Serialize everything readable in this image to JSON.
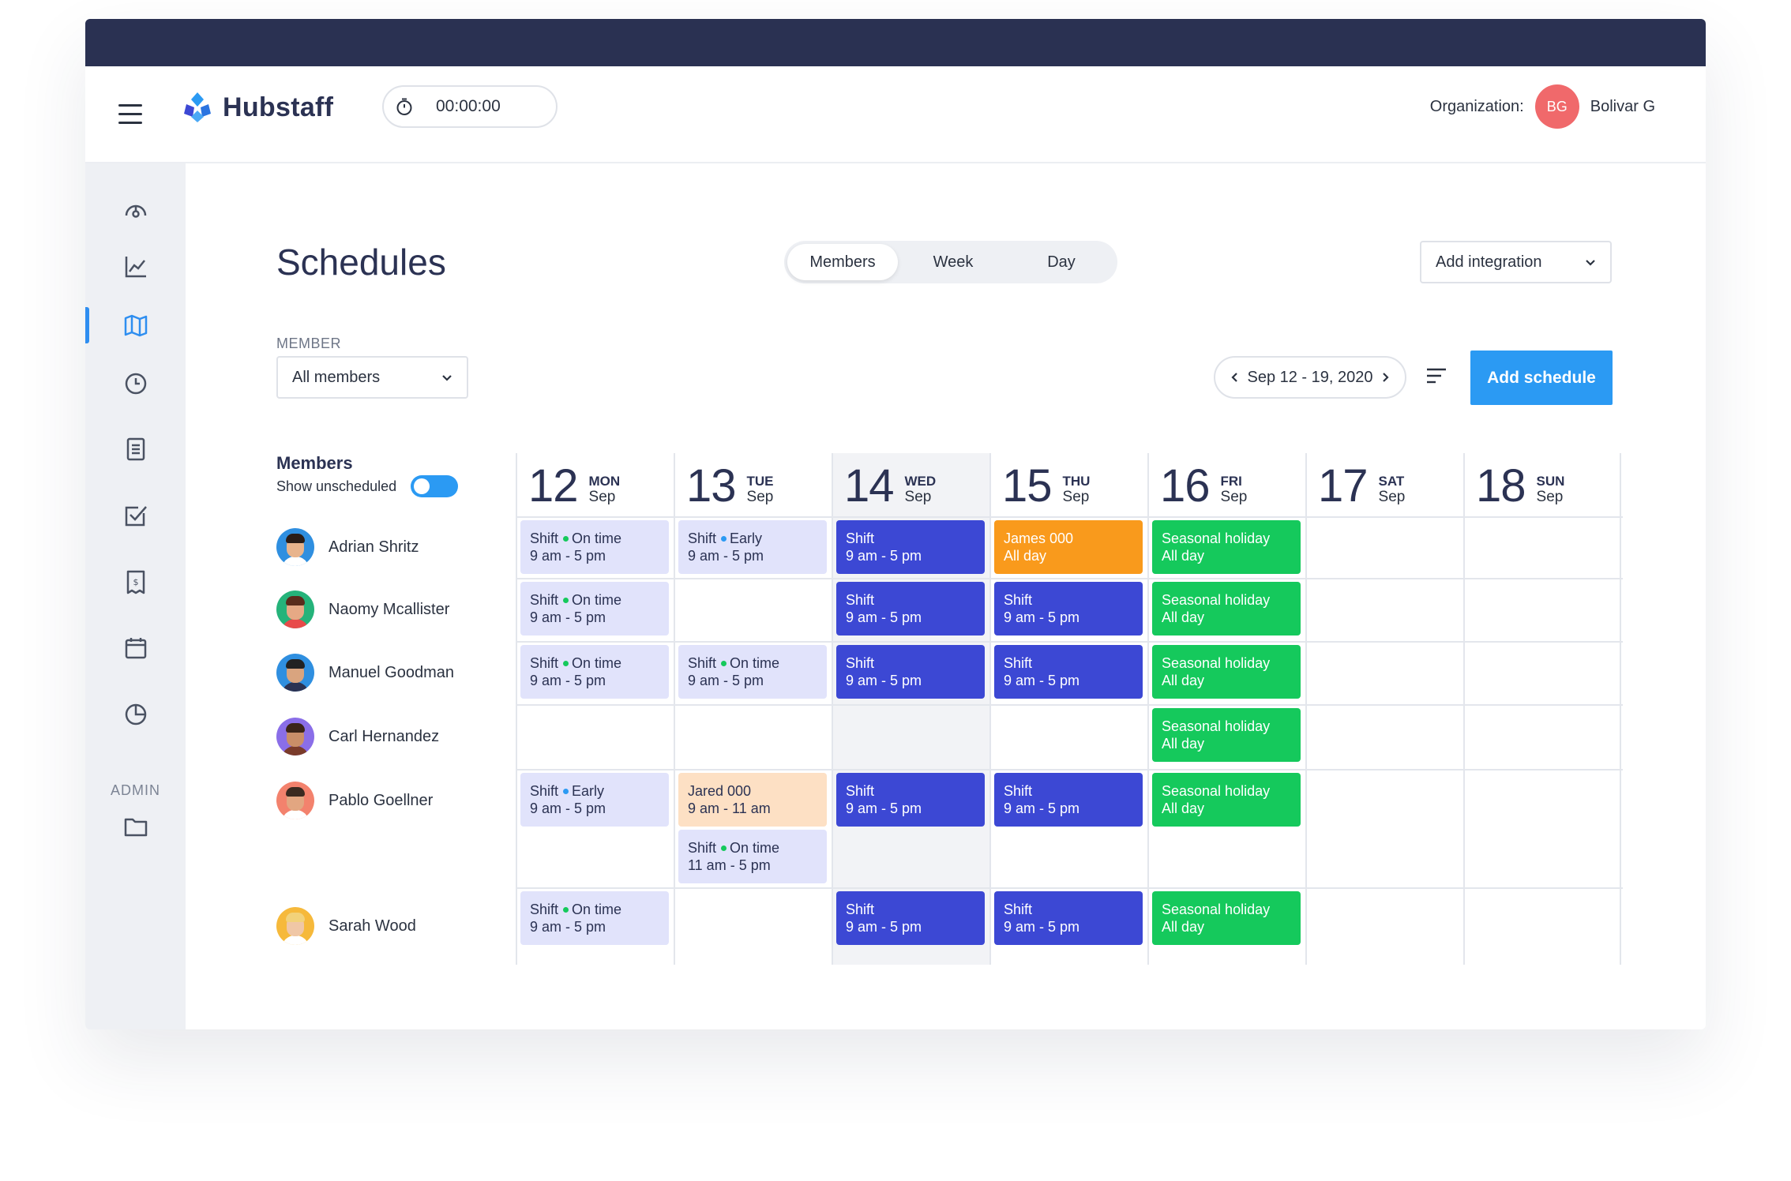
{
  "app": {
    "logo_text": "Hubstaff",
    "timer": "00:00:00"
  },
  "organization": {
    "label": "Organization:",
    "initials": "BG",
    "name": "Bolivar G",
    "avatar_color": "#f0696b"
  },
  "sidebar": {
    "admin_label": "ADMIN",
    "icons": [
      "dashboard-icon",
      "activity-chart-icon",
      "map-icon",
      "clock-icon",
      "timesheet-icon",
      "todo-check-icon",
      "invoice-icon",
      "calendar-icon",
      "reports-pie-icon"
    ],
    "admin_icon": "folder-icon"
  },
  "page": {
    "title": "Schedules"
  },
  "tabs": [
    {
      "label": "Members",
      "active": true
    },
    {
      "label": "Week",
      "active": false
    },
    {
      "label": "Day",
      "active": false
    }
  ],
  "integration": {
    "label": "Add integration"
  },
  "member_filter": {
    "label": "MEMBER",
    "value": "All members"
  },
  "date_range": {
    "label": "Sep 12 - 19, 2020"
  },
  "add_schedule": {
    "label": "Add schedule"
  },
  "grid": {
    "members_title": "Members",
    "show_unscheduled": "Show unscheduled",
    "show_unscheduled_on": true,
    "days": [
      {
        "num": "12",
        "name": "MON",
        "month": "Sep"
      },
      {
        "num": "13",
        "name": "TUE",
        "month": "Sep"
      },
      {
        "num": "14",
        "name": "WED",
        "month": "Sep"
      },
      {
        "num": "15",
        "name": "THU",
        "month": "Sep"
      },
      {
        "num": "16",
        "name": "FRI",
        "month": "Sep"
      },
      {
        "num": "17",
        "name": "SAT",
        "month": "Sep"
      },
      {
        "num": "18",
        "name": "SUN",
        "month": "Sep"
      }
    ],
    "rows": [
      {
        "name": "Adrian Shritz",
        "avatar_bg": "#2f8fe0",
        "hair": "#2a1d18",
        "skin": "#e8b48d",
        "shirt": "#ffffff"
      },
      {
        "name": "Naomy Mcallister",
        "avatar_bg": "#25b37a",
        "hair": "#5a2c1c",
        "skin": "#e6a985",
        "shirt": "#e84a4a"
      },
      {
        "name": "Manuel Goodman",
        "avatar_bg": "#2f8fe0",
        "hair": "#222222",
        "skin": "#d9a47f",
        "shirt": "#2b3253"
      },
      {
        "name": "Carl Hernandez",
        "avatar_bg": "#8a6ee8",
        "hair": "#3b2418",
        "skin": "#c98e68",
        "shirt": "#7a3b2a"
      },
      {
        "name": "Pablo Goellner",
        "avatar_bg": "#f3826d",
        "hair": "#3b2a20",
        "skin": "#e2a681",
        "shirt": "#ffffff"
      },
      {
        "name": "Sarah Wood",
        "avatar_bg": "#f6b93b",
        "hair": "#f2d27a",
        "skin": "#f0c7a6",
        "shirt": "#ffffff"
      }
    ],
    "status_colors": {
      "On time": "#15c95c",
      "Early": "#2b9af3"
    },
    "blocks": [
      {
        "row": 0,
        "day": 0,
        "slot": 0,
        "style": "light",
        "title": "Shift",
        "status": "On time",
        "time": "9 am - 5 pm"
      },
      {
        "row": 0,
        "day": 1,
        "slot": 0,
        "style": "light",
        "title": "Shift",
        "status": "Early",
        "time": "9 am - 5 pm"
      },
      {
        "row": 0,
        "day": 2,
        "slot": 0,
        "style": "blue",
        "title": "Shift",
        "status": "",
        "time": "9 am - 5 pm"
      },
      {
        "row": 0,
        "day": 3,
        "slot": 0,
        "style": "orange",
        "title": "James 000",
        "status": "",
        "time": "All day"
      },
      {
        "row": 0,
        "day": 4,
        "slot": 0,
        "style": "green",
        "title": "Seasonal holiday",
        "status": "",
        "time": "All day"
      },
      {
        "row": 1,
        "day": 0,
        "slot": 0,
        "style": "light",
        "title": "Shift",
        "status": "On time",
        "time": "9 am - 5 pm"
      },
      {
        "row": 1,
        "day": 2,
        "slot": 0,
        "style": "blue",
        "title": "Shift",
        "status": "",
        "time": "9 am - 5 pm"
      },
      {
        "row": 1,
        "day": 3,
        "slot": 0,
        "style": "blue",
        "title": "Shift",
        "status": "",
        "time": "9 am - 5 pm"
      },
      {
        "row": 1,
        "day": 4,
        "slot": 0,
        "style": "green",
        "title": "Seasonal holiday",
        "status": "",
        "time": "All day"
      },
      {
        "row": 2,
        "day": 0,
        "slot": 0,
        "style": "light",
        "title": "Shift",
        "status": "On time",
        "time": "9 am - 5 pm"
      },
      {
        "row": 2,
        "day": 1,
        "slot": 0,
        "style": "light",
        "title": "Shift",
        "status": "On time",
        "time": "9 am - 5 pm"
      },
      {
        "row": 2,
        "day": 2,
        "slot": 0,
        "style": "blue",
        "title": "Shift",
        "status": "",
        "time": "9 am - 5 pm"
      },
      {
        "row": 2,
        "day": 3,
        "slot": 0,
        "style": "blue",
        "title": "Shift",
        "status": "",
        "time": "9 am - 5 pm"
      },
      {
        "row": 2,
        "day": 4,
        "slot": 0,
        "style": "green",
        "title": "Seasonal holiday",
        "status": "",
        "time": "All day"
      },
      {
        "row": 3,
        "day": 4,
        "slot": 0,
        "style": "green",
        "title": "Seasonal holiday",
        "status": "",
        "time": "All day"
      },
      {
        "row": 4,
        "day": 0,
        "slot": 0,
        "style": "light",
        "title": "Shift",
        "status": "Early",
        "time": "9 am - 5 pm"
      },
      {
        "row": 4,
        "day": 1,
        "slot": 0,
        "style": "peach",
        "title": "Jared 000",
        "status": "",
        "time": "9 am - 11 am"
      },
      {
        "row": 4,
        "day": 1,
        "slot": 1,
        "style": "light",
        "title": "Shift",
        "status": "On time",
        "time": "11 am - 5 pm"
      },
      {
        "row": 4,
        "day": 2,
        "slot": 0,
        "style": "blue",
        "title": "Shift",
        "status": "",
        "time": "9 am - 5 pm"
      },
      {
        "row": 4,
        "day": 3,
        "slot": 0,
        "style": "blue",
        "title": "Shift",
        "status": "",
        "time": "9 am - 5 pm"
      },
      {
        "row": 4,
        "day": 4,
        "slot": 0,
        "style": "green",
        "title": "Seasonal holiday",
        "status": "",
        "time": "All day"
      },
      {
        "row": 5,
        "day": 0,
        "slot": 0,
        "style": "light",
        "title": "Shift",
        "status": "On time",
        "time": "9 am - 5 pm"
      },
      {
        "row": 5,
        "day": 2,
        "slot": 0,
        "style": "blue",
        "title": "Shift",
        "status": "",
        "time": "9 am - 5 pm"
      },
      {
        "row": 5,
        "day": 3,
        "slot": 0,
        "style": "blue",
        "title": "Shift",
        "status": "",
        "time": "9 am - 5 pm"
      },
      {
        "row": 5,
        "day": 4,
        "slot": 0,
        "style": "green",
        "title": "Seasonal holiday",
        "status": "",
        "time": "All day"
      }
    ]
  }
}
